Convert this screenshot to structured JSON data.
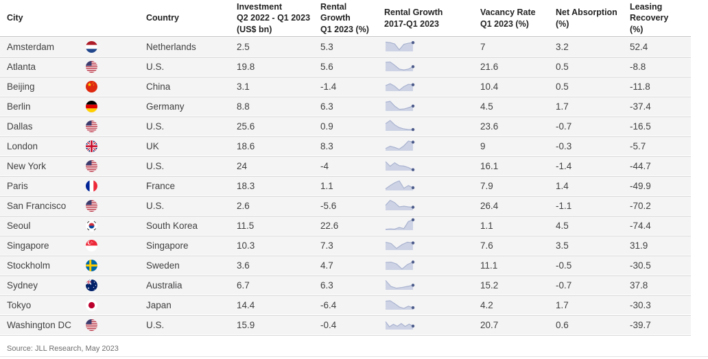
{
  "chart_data": {
    "type": "table",
    "columns": [
      {
        "id": "city",
        "lines": [
          "City",
          "",
          ""
        ]
      },
      {
        "id": "flag",
        "lines": [
          "",
          "",
          ""
        ]
      },
      {
        "id": "country",
        "lines": [
          "Country",
          "",
          ""
        ]
      },
      {
        "id": "investment",
        "lines": [
          "Investment",
          "Q2 2022 - Q1 2023",
          "(US$ bn)"
        ]
      },
      {
        "id": "rental_growth_q1",
        "lines": [
          "Rental Growth",
          "Q1 2023 (%)",
          ""
        ]
      },
      {
        "id": "rental_growth_trend",
        "lines": [
          "Rental Growth",
          "2017-Q1 2023",
          ""
        ]
      },
      {
        "id": "vacancy",
        "lines": [
          "Vacancy Rate",
          "Q1 2023 (%)",
          ""
        ]
      },
      {
        "id": "net_absorption",
        "lines": [
          "Net Absorption",
          "(%)",
          ""
        ]
      },
      {
        "id": "leasing_recovery",
        "lines": [
          "Leasing Recovery",
          "(%)",
          ""
        ]
      }
    ],
    "rows": [
      {
        "city": "Amsterdam",
        "flag": "nl",
        "country": "Netherlands",
        "investment": "2.5",
        "rental_growth_q1": "5.3",
        "trend": [
          0.85,
          0.8,
          0.68,
          0.15,
          0.65,
          0.75,
          0.8
        ],
        "vacancy": "7",
        "net_absorption": "3.2",
        "leasing_recovery": "52.4"
      },
      {
        "city": "Atlanta",
        "flag": "us",
        "country": "U.S.",
        "investment": "19.8",
        "rental_growth_q1": "5.6",
        "trend": [
          0.82,
          0.85,
          0.55,
          0.2,
          0.12,
          0.2,
          0.42
        ],
        "vacancy": "21.6",
        "net_absorption": "0.5",
        "leasing_recovery": "-8.8"
      },
      {
        "city": "Beijing",
        "flag": "cn",
        "country": "China",
        "investment": "3.1",
        "rental_growth_q1": "-1.4",
        "trend": [
          0.5,
          0.68,
          0.45,
          0.08,
          0.42,
          0.62,
          0.58
        ],
        "vacancy": "10.4",
        "net_absorption": "0.5",
        "leasing_recovery": "-11.8"
      },
      {
        "city": "Berlin",
        "flag": "de",
        "country": "Germany",
        "investment": "8.8",
        "rental_growth_q1": "6.3",
        "trend": [
          0.8,
          0.88,
          0.45,
          0.15,
          0.18,
          0.3,
          0.45
        ],
        "vacancy": "4.5",
        "net_absorption": "1.7",
        "leasing_recovery": "-37.4"
      },
      {
        "city": "Dallas",
        "flag": "us",
        "country": "U.S.",
        "investment": "25.6",
        "rental_growth_q1": "0.9",
        "trend": [
          0.65,
          0.95,
          0.55,
          0.3,
          0.18,
          0.12,
          0.12
        ],
        "vacancy": "23.6",
        "net_absorption": "-0.7",
        "leasing_recovery": "-16.5"
      },
      {
        "city": "London",
        "flag": "uk",
        "country": "UK",
        "investment": "18.6",
        "rental_growth_q1": "8.3",
        "trend": [
          0.2,
          0.42,
          0.3,
          0.15,
          0.45,
          0.88,
          0.78
        ],
        "vacancy": "9",
        "net_absorption": "-0.3",
        "leasing_recovery": "-5.7"
      },
      {
        "city": "New York",
        "flag": "us",
        "country": "U.S.",
        "investment": "24",
        "rental_growth_q1": "-4",
        "trend": [
          0.82,
          0.4,
          0.72,
          0.45,
          0.42,
          0.28,
          0.08
        ],
        "vacancy": "16.1",
        "net_absorption": "-1.4",
        "leasing_recovery": "-44.7"
      },
      {
        "city": "Paris",
        "flag": "fr",
        "country": "France",
        "investment": "18.3",
        "rental_growth_q1": "1.1",
        "trend": [
          0.15,
          0.45,
          0.7,
          0.88,
          0.2,
          0.45,
          0.25
        ],
        "vacancy": "7.9",
        "net_absorption": "1.4",
        "leasing_recovery": "-49.9"
      },
      {
        "city": "San Francisco",
        "flag": "us",
        "country": "U.S.",
        "investment": "2.6",
        "rental_growth_q1": "-5.6",
        "trend": [
          0.45,
          0.92,
          0.7,
          0.32,
          0.38,
          0.32,
          0.28
        ],
        "vacancy": "26.4",
        "net_absorption": "-1.1",
        "leasing_recovery": "-70.2"
      },
      {
        "city": "Seoul",
        "flag": "kr",
        "country": "South Korea",
        "investment": "11.5",
        "rental_growth_q1": "22.6",
        "trend": [
          0.08,
          0.12,
          0.1,
          0.25,
          0.15,
          0.8,
          0.95
        ],
        "vacancy": "1.1",
        "net_absorption": "4.5",
        "leasing_recovery": "-74.4"
      },
      {
        "city": "Singapore",
        "flag": "sg",
        "country": "Singapore",
        "investment": "10.3",
        "rental_growth_q1": "7.3",
        "trend": [
          0.72,
          0.6,
          0.15,
          0.5,
          0.72,
          0.65
        ],
        "vacancy": "7.6",
        "net_absorption": "3.5",
        "leasing_recovery": "31.9"
      },
      {
        "city": "Stockholm",
        "flag": "se",
        "country": "Sweden",
        "investment": "3.6",
        "rental_growth_q1": "4.7",
        "trend": [
          0.68,
          0.72,
          0.55,
          0.08,
          0.5,
          0.72
        ],
        "vacancy": "11.1",
        "net_absorption": "-0.5",
        "leasing_recovery": "-30.5"
      },
      {
        "city": "Sydney",
        "flag": "au",
        "country": "Australia",
        "investment": "6.7",
        "rental_growth_q1": "6.3",
        "trend": [
          0.85,
          0.3,
          0.15,
          0.22,
          0.32,
          0.42
        ],
        "vacancy": "15.2",
        "net_absorption": "-0.7",
        "leasing_recovery": "37.8"
      },
      {
        "city": "Tokyo",
        "flag": "jp",
        "country": "Japan",
        "investment": "14.4",
        "rental_growth_q1": "-6.4",
        "trend": [
          0.78,
          0.82,
          0.55,
          0.25,
          0.12,
          0.32,
          0.18
        ],
        "vacancy": "4.2",
        "net_absorption": "1.7",
        "leasing_recovery": "-30.3"
      },
      {
        "city": "Washington DC",
        "flag": "us",
        "country": "U.S.",
        "investment": "15.9",
        "rental_growth_q1": "-0.4",
        "trend": [
          0.72,
          0.25,
          0.48,
          0.3,
          0.55,
          0.28,
          0.5,
          0.32
        ],
        "vacancy": "20.7",
        "net_absorption": "0.6",
        "leasing_recovery": "-39.7"
      }
    ],
    "sparkline_style": {
      "fill": "#c9cfe2",
      "line": "#a6b0ce",
      "dot": "#4d5c8b"
    },
    "colors": {
      "row_bg": "#f4f4f5",
      "divider": "#d8d8d8",
      "header_text": "#222222",
      "body_text": "#404040"
    }
  },
  "footer": {
    "source": "Source: JLL Research, May 2023"
  }
}
